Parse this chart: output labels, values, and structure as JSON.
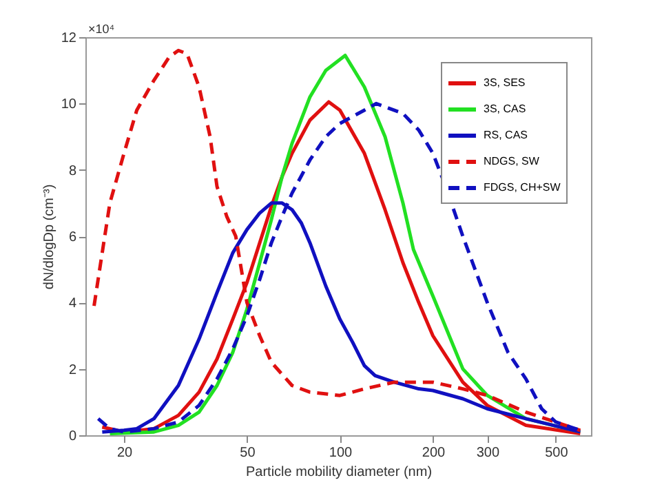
{
  "chart_data": {
    "type": "line",
    "xlabel": "Particle mobility diameter (nm)",
    "ylabel": "dN/dlogDp (cm⁻³)",
    "annotations": [
      "×10⁴"
    ],
    "log": "x",
    "xlim": [
      15,
      650
    ],
    "xticks": [
      20,
      50,
      100,
      200,
      300,
      500
    ],
    "ylim": [
      0,
      12
    ],
    "yticks": [
      0,
      2,
      4,
      6,
      8,
      10,
      12
    ],
    "grid": false,
    "legend": "top right",
    "marker": "none",
    "series": [
      {
        "name": "3S, SES",
        "color": "#e01010",
        "line_style": "solid",
        "x": [
          17,
          20,
          25,
          30,
          35,
          40,
          45,
          50,
          55,
          60,
          65,
          70,
          80,
          92,
          100,
          120,
          140,
          160,
          180,
          200,
          250,
          300,
          400,
          600
        ],
        "values": [
          0.25,
          0.1,
          0.2,
          0.6,
          1.3,
          2.3,
          3.5,
          4.6,
          5.8,
          6.9,
          7.8,
          8.5,
          9.5,
          10.05,
          9.8,
          8.5,
          6.8,
          5.2,
          4.0,
          3.0,
          1.6,
          0.9,
          0.3,
          0.05
        ]
      },
      {
        "name": "3S, CAS",
        "color": "#22e022",
        "line_style": "solid",
        "x": [
          18,
          25,
          30,
          35,
          40,
          45,
          50,
          55,
          60,
          65,
          70,
          80,
          90,
          104,
          120,
          140,
          160,
          173,
          200,
          250,
          300,
          400,
          600
        ],
        "values": [
          0.05,
          0.1,
          0.3,
          0.7,
          1.5,
          2.5,
          3.8,
          5.2,
          6.5,
          7.8,
          8.8,
          10.2,
          11.0,
          11.45,
          10.5,
          9.0,
          7.0,
          5.6,
          4.2,
          2.0,
          1.2,
          0.5,
          0.1
        ]
      },
      {
        "name": "RS, CAS",
        "color": "#1010c0",
        "line_style": "solid",
        "x": [
          17,
          20,
          22,
          25,
          30,
          35,
          40,
          45,
          50,
          55,
          60,
          65,
          70,
          75,
          80,
          90,
          100,
          110,
          120,
          130,
          150,
          180,
          200,
          250,
          300,
          400,
          600
        ],
        "values": [
          0.1,
          0.15,
          0.2,
          0.5,
          1.5,
          2.9,
          4.3,
          5.5,
          6.2,
          6.7,
          7.0,
          7.0,
          6.8,
          6.4,
          5.8,
          4.5,
          3.5,
          2.8,
          2.1,
          1.8,
          1.6,
          1.4,
          1.35,
          1.1,
          0.8,
          0.5,
          0.1
        ]
      },
      {
        "name": "NDGS, SW",
        "color": "#e01010",
        "line_style": "dashed",
        "x": [
          16,
          17,
          18,
          20,
          22,
          25,
          28,
          30,
          32,
          35,
          38,
          40,
          43,
          46,
          50,
          55,
          60,
          70,
          80,
          100,
          120,
          150,
          200,
          250,
          300,
          400,
          600
        ],
        "values": [
          3.9,
          5.5,
          7.0,
          8.5,
          9.8,
          10.7,
          11.4,
          11.6,
          11.5,
          10.5,
          9.0,
          7.5,
          6.6,
          6.0,
          4.0,
          3.0,
          2.2,
          1.5,
          1.3,
          1.2,
          1.4,
          1.6,
          1.6,
          1.4,
          1.2,
          0.7,
          0.15
        ]
      },
      {
        "name": "FDGS, CH+SW",
        "color": "#1010c0",
        "line_style": "dashed",
        "x": [
          16.5,
          18,
          20,
          25,
          30,
          35,
          40,
          45,
          50,
          55,
          60,
          65,
          70,
          80,
          90,
          100,
          120,
          131,
          160,
          180,
          200,
          220,
          250,
          300,
          350,
          400,
          450,
          500,
          600
        ],
        "values": [
          0.5,
          0.2,
          0.1,
          0.2,
          0.4,
          0.9,
          1.7,
          2.6,
          3.6,
          4.7,
          5.8,
          6.6,
          7.3,
          8.3,
          9.0,
          9.4,
          9.8,
          10.0,
          9.7,
          9.2,
          8.5,
          7.5,
          6.0,
          4.0,
          2.5,
          1.7,
          0.8,
          0.4,
          0.15
        ]
      }
    ]
  }
}
